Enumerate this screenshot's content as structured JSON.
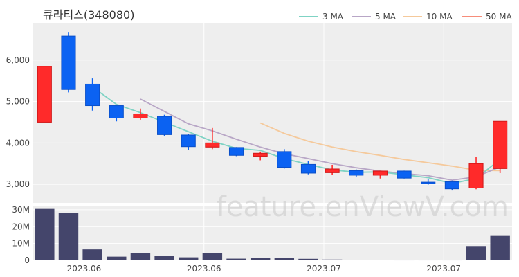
{
  "title": "큐라티스(348080)",
  "watermark": "feature.enViewV.com",
  "colors": {
    "up": "#ff2a2a",
    "down": "#0b62f2",
    "volume": "#44456b",
    "ma3": "#7fd3c4",
    "ma5": "#b8a6c6",
    "ma10": "#f5c99b",
    "ma50": "#f78d7a",
    "grid": "#e6e6e6",
    "panel": "#eeeeee"
  },
  "legend": [
    {
      "label": "3 MA",
      "color": "#7fd3c4"
    },
    {
      "label": "5 MA",
      "color": "#b8a6c6"
    },
    {
      "label": "10 MA",
      "color": "#f5c99b"
    },
    {
      "label": "50 MA",
      "color": "#f78d7a"
    }
  ],
  "chart_data": {
    "type": "candlestick",
    "x_tick_labels": [
      "2023.06",
      "2023.06",
      "2023.07",
      "2023.07"
    ],
    "x_tick_index": [
      2,
      7,
      12,
      17
    ],
    "price_ylim": [
      2550,
      6900
    ],
    "price_ticks": [
      3000,
      4000,
      5000,
      6000
    ],
    "price_tick_labels": [
      "3,000",
      "4,000",
      "5,000",
      "6,000"
    ],
    "volume_ylim": [
      0,
      32000000
    ],
    "volume_ticks": [
      0,
      10000000,
      20000000,
      30000000
    ],
    "volume_tick_labels": [
      "0",
      "10M",
      "20M",
      "30M"
    ],
    "candles": [
      {
        "open": 4500,
        "high": 5850,
        "low": 4500,
        "close": 5850,
        "volume": 30500000
      },
      {
        "open": 6580,
        "high": 6680,
        "low": 5220,
        "close": 5290,
        "volume": 28000000
      },
      {
        "open": 5420,
        "high": 5560,
        "low": 4780,
        "close": 4900,
        "volume": 6500000
      },
      {
        "open": 4900,
        "high": 4900,
        "low": 4520,
        "close": 4600,
        "volume": 2200000
      },
      {
        "open": 4600,
        "high": 4830,
        "low": 4560,
        "close": 4700,
        "volume": 4500000
      },
      {
        "open": 4640,
        "high": 4680,
        "low": 4160,
        "close": 4200,
        "volume": 2800000
      },
      {
        "open": 4190,
        "high": 4210,
        "low": 3830,
        "close": 3910,
        "volume": 1800000
      },
      {
        "open": 3900,
        "high": 4360,
        "low": 3850,
        "close": 4000,
        "volume": 4300000
      },
      {
        "open": 3890,
        "high": 3900,
        "low": 3680,
        "close": 3700,
        "volume": 1000000
      },
      {
        "open": 3680,
        "high": 3790,
        "low": 3580,
        "close": 3750,
        "volume": 1400000
      },
      {
        "open": 3790,
        "high": 3850,
        "low": 3380,
        "close": 3410,
        "volume": 1300000
      },
      {
        "open": 3480,
        "high": 3560,
        "low": 3240,
        "close": 3270,
        "volume": 900000
      },
      {
        "open": 3280,
        "high": 3470,
        "low": 3230,
        "close": 3370,
        "volume": 500000
      },
      {
        "open": 3330,
        "high": 3360,
        "low": 3180,
        "close": 3220,
        "volume": 300000
      },
      {
        "open": 3220,
        "high": 3330,
        "low": 3140,
        "close": 3320,
        "volume": 300000
      },
      {
        "open": 3320,
        "high": 3330,
        "low": 3140,
        "close": 3150,
        "volume": 200000
      },
      {
        "open": 3050,
        "high": 3120,
        "low": 2990,
        "close": 3020,
        "volume": 200000
      },
      {
        "open": 3060,
        "high": 3090,
        "low": 2850,
        "close": 2890,
        "volume": 200000
      },
      {
        "open": 2910,
        "high": 3670,
        "low": 2880,
        "close": 3500,
        "volume": 8500000
      },
      {
        "open": 3380,
        "high": 4520,
        "low": 3270,
        "close": 4520,
        "volume": 14500000
      }
    ],
    "ma3": [
      null,
      null,
      5350,
      4930,
      4730,
      4500,
      4270,
      4040,
      3870,
      3820,
      3620,
      3480,
      3350,
      3290,
      3300,
      3230,
      3160,
      3020,
      3140,
      3600
    ],
    "ma5": [
      null,
      null,
      null,
      null,
      5060,
      4760,
      4460,
      4290,
      4090,
      3900,
      3740,
      3620,
      3500,
      3400,
      3320,
      3260,
      3210,
      3100,
      3180,
      3420
    ],
    "ma10": [
      null,
      null,
      null,
      null,
      null,
      null,
      null,
      null,
      null,
      4480,
      4230,
      4040,
      3900,
      3790,
      3700,
      3600,
      3520,
      3440,
      3340,
      3330
    ],
    "ma50": []
  }
}
